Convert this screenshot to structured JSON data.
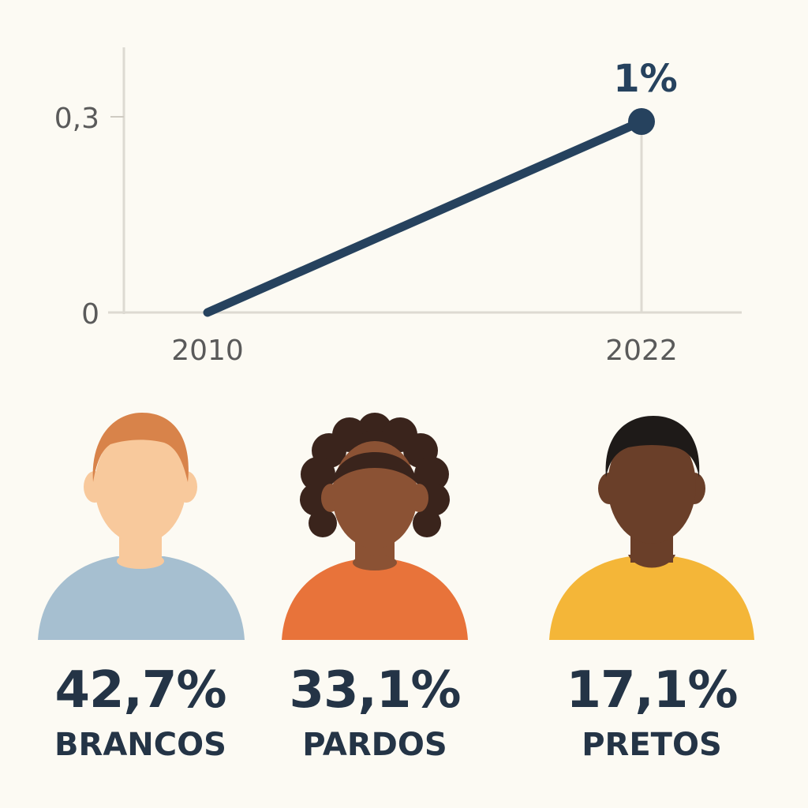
{
  "chart_data": {
    "type": "line",
    "x": [
      "2010",
      "2022"
    ],
    "values": [
      0,
      0.3
    ],
    "y_ticks": [
      "0",
      "0,3"
    ],
    "ylim": [
      0,
      0.3
    ],
    "end_label": "1%",
    "grid": true,
    "colors": {
      "line": "#26425e",
      "axis": "#dddad2",
      "tick": "#5a5a5a"
    }
  },
  "groups": [
    {
      "percent": "42,7%",
      "label": "BRANCOS",
      "icon": "person-light-skin-icon",
      "colors": {
        "hair": "#d8834a",
        "skin": "#f8c99c",
        "shirt": "#a6bfd0"
      }
    },
    {
      "percent": "33,1%",
      "label": "PARDOS",
      "icon": "person-medium-skin-curly-hair-icon",
      "colors": {
        "hair": "#3a241c",
        "skin": "#8b5234",
        "shirt": "#e8733a"
      }
    },
    {
      "percent": "17,1%",
      "label": "PRETOS",
      "icon": "person-dark-skin-icon",
      "colors": {
        "hair": "#1e1a18",
        "skin": "#6a3f29",
        "shirt": "#f4b638"
      }
    }
  ]
}
